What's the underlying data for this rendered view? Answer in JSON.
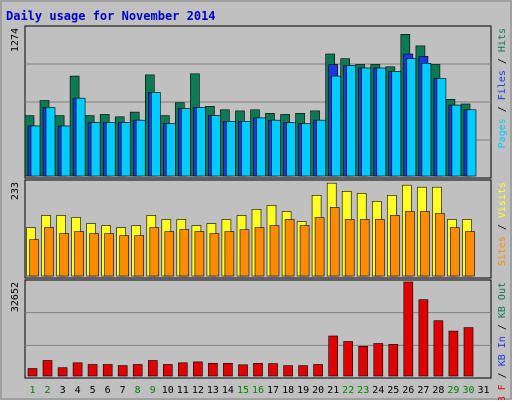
{
  "chart_data": {
    "type": "bar",
    "title": "Daily usage for November 2014",
    "categories": [
      "1",
      "2",
      "3",
      "4",
      "5",
      "6",
      "7",
      "8",
      "9",
      "10",
      "11",
      "12",
      "13",
      "14",
      "15",
      "16",
      "17",
      "18",
      "19",
      "20",
      "21",
      "22",
      "23",
      "24",
      "25",
      "26",
      "27",
      "28",
      "29",
      "30",
      "31"
    ],
    "weekend_days": [
      "1",
      "2",
      "8",
      "9",
      "15",
      "16",
      "22",
      "23",
      "29",
      "30"
    ],
    "colors": {
      "title": "#0000cc",
      "hits": "#0d7a54",
      "files": "#1a3ae0",
      "pages": "#00ccff",
      "visits": "#ffff22",
      "sites": "#ff8c00",
      "kbin": "#1a3ae0",
      "kbout": "#0d7a54",
      "kbf": "#e00000",
      "weekend": "#008000",
      "weekday": "#000000",
      "panel": "#c0c0c0"
    },
    "panels": [
      {
        "name": "hits-files-pages",
        "max_label": "1274",
        "ymax": 1274,
        "legend": [
          {
            "text": "Pages",
            "color": "#00ccff"
          },
          {
            "text": " / ",
            "color": "#000000"
          },
          {
            "text": "Files",
            "color": "#1a3ae0"
          },
          {
            "text": " / ",
            "color": "#000000"
          },
          {
            "text": "Hits",
            "color": "#0d7a54"
          }
        ],
        "series": [
          {
            "name": "Hits",
            "color": "#0d7a54",
            "values": [
              520,
              650,
              520,
              860,
              520,
              530,
              510,
              550,
              870,
              520,
              630,
              880,
              600,
              570,
              560,
              570,
              540,
              530,
              540,
              560,
              1050,
              1010,
              960,
              960,
              940,
              1220,
              1120,
              960,
              660,
              620,
              null
            ]
          },
          {
            "name": "Files",
            "color": "#1a3ae0",
            "values": [
              430,
              590,
              430,
              670,
              460,
              460,
              460,
              480,
              720,
              450,
              580,
              590,
              520,
              470,
              470,
              500,
              480,
              460,
              450,
              480,
              960,
              950,
              930,
              930,
              900,
              1050,
              1030,
              840,
              610,
              570,
              null
            ]
          },
          {
            "name": "Pages",
            "color": "#00ccff",
            "values": [
              430,
              590,
              430,
              670,
              460,
              460,
              460,
              480,
              720,
              450,
              580,
              590,
              520,
              470,
              470,
              500,
              480,
              460,
              450,
              480,
              860,
              950,
              930,
              930,
              900,
              1010,
              970,
              840,
              610,
              570,
              null
            ]
          }
        ]
      },
      {
        "name": "visits-sites",
        "max_label": "233",
        "ymax": 233,
        "legend": [
          {
            "text": "Sites",
            "color": "#ff8c00"
          },
          {
            "text": " / ",
            "color": "#000000"
          },
          {
            "text": "Visits",
            "color": "#ffff22"
          }
        ],
        "series": [
          {
            "name": "Visits",
            "color": "#ffff22",
            "values": [
              120,
              150,
              150,
              145,
              130,
              125,
              120,
              125,
              150,
              140,
              140,
              125,
              130,
              140,
              150,
              165,
              175,
              160,
              135,
              200,
              230,
              210,
              205,
              185,
              200,
              225,
              220,
              220,
              140,
              140,
              null
            ]
          },
          {
            "name": "Sites",
            "color": "#ff8c00",
            "values": [
              90,
              120,
              105,
              110,
              105,
              105,
              100,
              100,
              120,
              110,
              115,
              110,
              105,
              110,
              115,
              120,
              125,
              140,
              125,
              145,
              170,
              140,
              140,
              140,
              150,
              160,
              160,
              155,
              120,
              110,
              null
            ]
          }
        ]
      },
      {
        "name": "kbf",
        "max_label": "32652",
        "ymax": 32652,
        "legend": [
          {
            "text": "KB F",
            "color": "#e00000"
          },
          {
            "text": " / ",
            "color": "#000000"
          },
          {
            "text": "KB In",
            "color": "#1a3ae0"
          },
          {
            "text": " / ",
            "color": "#000000"
          },
          {
            "text": "KB Out",
            "color": "#0d7a54"
          }
        ],
        "series": [
          {
            "name": "KB F",
            "color": "#e00000",
            "values": [
              2600,
              5400,
              2900,
              4600,
              4000,
              4000,
              3600,
              4000,
              5400,
              4000,
              4600,
              4900,
              4400,
              4400,
              3900,
              4400,
              4300,
              3600,
              3600,
              4000,
              13900,
              12000,
              10300,
              11300,
              11000,
              32652,
              26500,
              19200,
              15600,
              16800,
              null
            ]
          }
        ]
      }
    ]
  }
}
